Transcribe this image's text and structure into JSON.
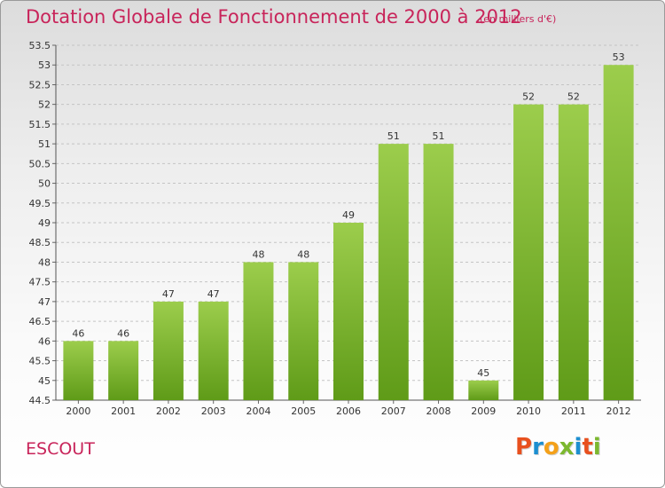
{
  "header": {
    "title": "Dotation Globale de Fonctionnement de 2000 à 2012",
    "unit_note": "(en milliers d'€)"
  },
  "footer": {
    "place": "ESCOUT",
    "logo_text": "Proxiti",
    "logo_colors": [
      "#e8501e",
      "#1d8fd0",
      "#f4a11a",
      "#7cb82f",
      "#1d8fd0",
      "#e8501e",
      "#7cb82f"
    ]
  },
  "chart_data": {
    "type": "bar",
    "categories": [
      "2000",
      "2001",
      "2002",
      "2003",
      "2004",
      "2005",
      "2006",
      "2007",
      "2008",
      "2009",
      "2010",
      "2011",
      "2012"
    ],
    "values": [
      46,
      46,
      47,
      47,
      48,
      48,
      49,
      51,
      51,
      45,
      52,
      52,
      53
    ],
    "data_labels": [
      "46",
      "46",
      "47",
      "47",
      "48",
      "48",
      "49",
      "51",
      "51",
      "45",
      "52",
      "52",
      "53"
    ],
    "y_ticks": [
      "44.5",
      "45",
      "45.5",
      "46",
      "46.5",
      "47",
      "47.5",
      "48",
      "48.5",
      "49",
      "49.5",
      "50",
      "50.5",
      "51",
      "51.5",
      "52",
      "52.5",
      "53",
      "53.5"
    ],
    "ylim": [
      44.5,
      53.5
    ],
    "grid": true,
    "bar_color_top": "#9ccd4c",
    "bar_color_bottom": "#5f9b18",
    "title_color": "#c8245a"
  }
}
